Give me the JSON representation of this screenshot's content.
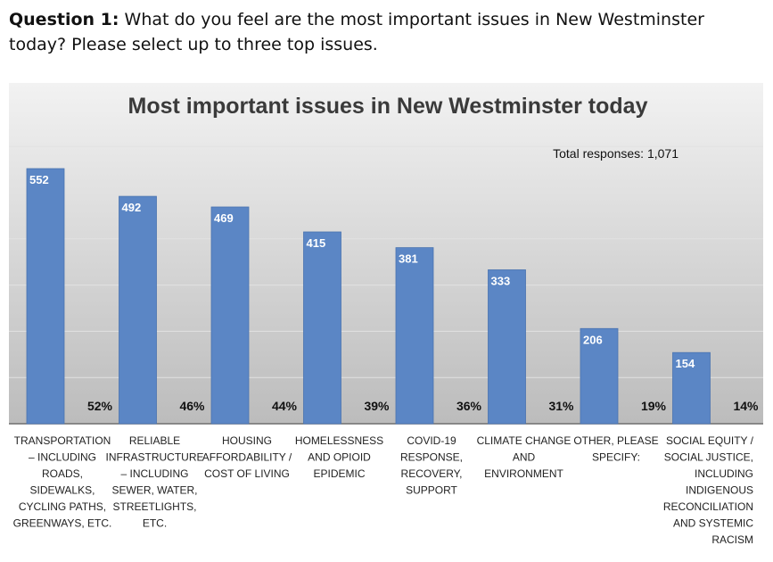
{
  "question": {
    "number_label": "Question 1:",
    "text": "What do you feel are the most important issues in New Westminster today? Please select up to three top issues."
  },
  "chart_data": {
    "type": "bar",
    "title": "Most important issues in New Westminster today",
    "annotation": "Total responses: 1,071",
    "xlabel": "",
    "ylabel": "",
    "ylim": [
      0,
      600
    ],
    "grid": true,
    "categories": [
      [
        "TRANSPORTATION",
        "– INCLUDING",
        "ROADS,",
        "SIDEWALKS,",
        "CYCLING PATHS,",
        "GREENWAYS, ETC."
      ],
      [
        "RELIABLE",
        "INFRASTRUCTURE",
        "– INCLUDING",
        "SEWER, WATER,",
        "STREETLIGHTS,",
        "ETC."
      ],
      [
        "HOUSING",
        "AFFORDABILITY /",
        "COST OF LIVING"
      ],
      [
        "HOMELESSNESS",
        "AND OPIOID",
        "EPIDEMIC"
      ],
      [
        "COVID-19",
        "RESPONSE,",
        "RECOVERY,",
        "SUPPORT"
      ],
      [
        "CLIMATE CHANGE",
        "AND",
        "ENVIRONMENT"
      ],
      [
        "OTHER, PLEASE",
        "SPECIFY:"
      ],
      [
        "SOCIAL EQUITY /",
        "SOCIAL JUSTICE,",
        "INCLUDING",
        "INDIGENOUS",
        "RECONCILIATION",
        "AND SYSTEMIC",
        "RACISM"
      ]
    ],
    "values": [
      552,
      492,
      469,
      415,
      381,
      333,
      206,
      154
    ],
    "percent_labels": [
      "52%",
      "46%",
      "44%",
      "39%",
      "36%",
      "31%",
      "19%",
      "14%"
    ],
    "colors": {
      "bar": "#5b86c5",
      "bar_edge": "#4a73b0",
      "background_top": "#f2f2f2",
      "background_bottom": "#bcbcbc",
      "grid": "#e2e2e2"
    }
  }
}
